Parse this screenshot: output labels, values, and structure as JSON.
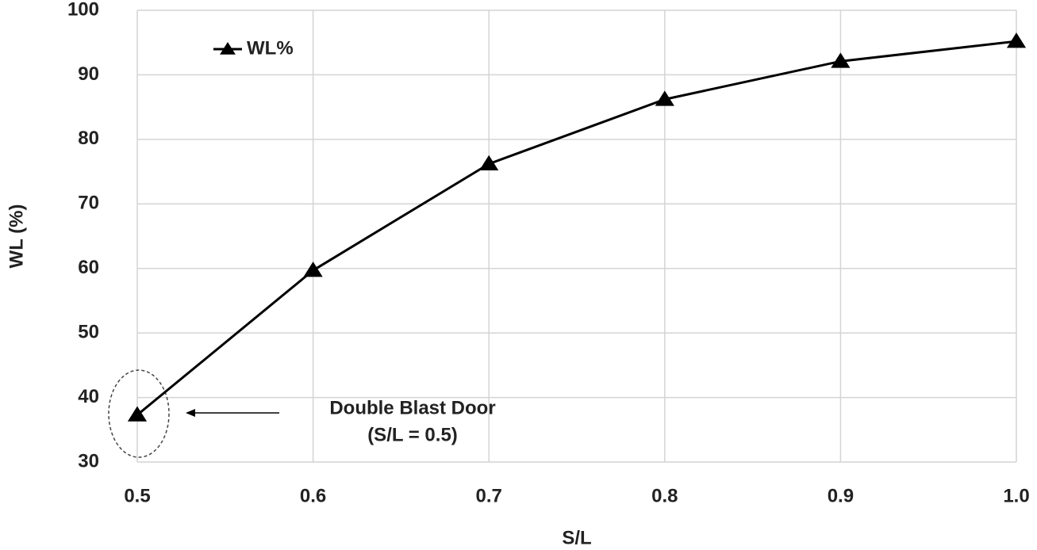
{
  "chart_data": {
    "type": "line",
    "x": [
      0.5,
      0.6,
      0.7,
      0.8,
      0.9,
      1.0
    ],
    "series": [
      {
        "name": "WL%",
        "color": "#000000",
        "values": [
          37.3,
          59.7,
          76.2,
          86.2,
          92.1,
          95.2
        ]
      }
    ],
    "xlabel": "S/L",
    "ylabel": "WL (%)",
    "xlim": [
      0.5,
      1.0
    ],
    "xticks": [
      0.5,
      0.6,
      0.7,
      0.8,
      0.9,
      {
        "value": 1.0,
        "label": "1.0"
      }
    ],
    "ylim": [
      30,
      100
    ],
    "yticks": [
      30,
      40,
      50,
      60,
      70,
      80,
      90,
      100
    ],
    "grid": true,
    "legend": "upper left",
    "annotations": [
      "Double Blast Door",
      "(S/L = 0.5)"
    ]
  }
}
